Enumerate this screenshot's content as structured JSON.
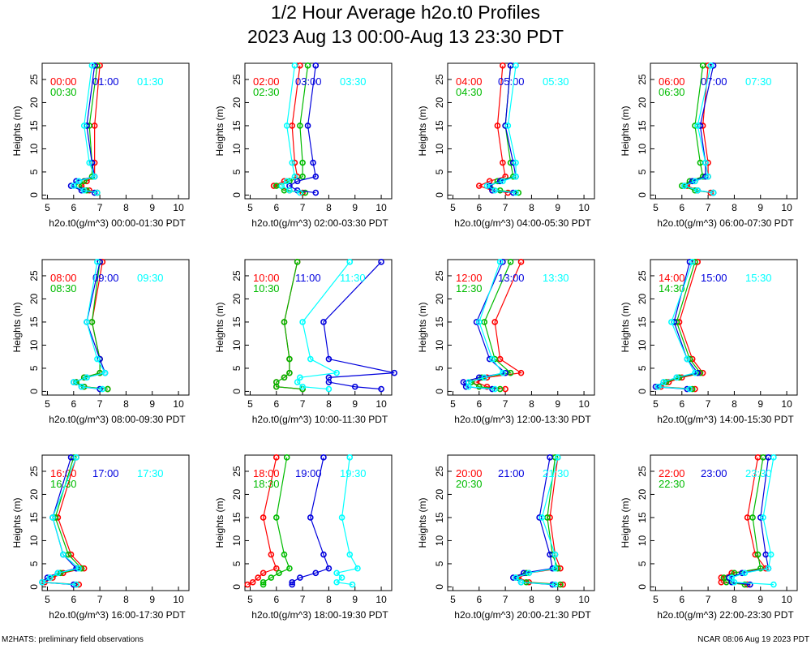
{
  "title": "1/2 Hour Average h2o.t0 Profiles",
  "subtitle": "2023 Aug 13 00:00-Aug 13 23:30 PDT",
  "footer_left": "M2HATS: preliminary field observations",
  "footer_right": "NCAR 08:06 Aug 19 2023 PDT",
  "series_colors": [
    "#ff0000",
    "#00bb00",
    "#0000dd",
    "#00ffff"
  ],
  "chart_data": [
    {
      "type": "line",
      "xlabel": "h2o.t0(g/m^3) 00:00-01:30 PDT",
      "ylabel": "Heights (m)",
      "xlim": [
        4.8,
        10.4
      ],
      "ylim": [
        -0.8,
        28.5
      ],
      "x_ticks": [
        5,
        6,
        7,
        8,
        9,
        10
      ],
      "y_ticks": [
        0,
        5,
        10,
        15,
        20,
        25
      ],
      "y": [
        0.5,
        1,
        2,
        3,
        4,
        7,
        15,
        28
      ],
      "series": [
        {
          "name": "00:00",
          "values": [
            6.9,
            6.6,
            6.3,
            6.5,
            6.8,
            6.8,
            6.8,
            7.0
          ]
        },
        {
          "name": "00:30",
          "values": [
            6.9,
            6.5,
            6.2,
            6.4,
            6.7,
            6.7,
            6.6,
            6.9
          ]
        },
        {
          "name": "01:00",
          "values": [
            6.8,
            6.3,
            5.9,
            6.1,
            6.8,
            6.7,
            6.5,
            6.8
          ]
        },
        {
          "name": "01:30",
          "values": [
            6.9,
            6.4,
            6.0,
            6.2,
            6.8,
            6.6,
            6.4,
            6.7
          ]
        }
      ]
    },
    {
      "type": "line",
      "xlabel": "h2o.t0(g/m^3) 02:00-03:30 PDT",
      "ylabel": "Heights (m)",
      "xlim": [
        4.8,
        10.4
      ],
      "ylim": [
        -0.8,
        28.5
      ],
      "x_ticks": [
        5,
        6,
        7,
        8,
        9,
        10
      ],
      "y_ticks": [
        0,
        5,
        10,
        15,
        20,
        25
      ],
      "y": [
        0.5,
        1,
        2,
        3,
        4,
        7,
        15,
        28
      ],
      "series": [
        {
          "name": "02:00",
          "values": [
            7.0,
            6.5,
            5.9,
            6.3,
            6.8,
            6.7,
            6.6,
            6.9
          ]
        },
        {
          "name": "02:30",
          "values": [
            7.1,
            6.3,
            6.0,
            6.5,
            7.0,
            7.0,
            6.9,
            7.2
          ]
        },
        {
          "name": "03:00",
          "values": [
            7.5,
            6.8,
            6.5,
            6.8,
            7.5,
            7.4,
            7.2,
            7.5
          ]
        },
        {
          "name": "03:30",
          "values": [
            6.9,
            6.5,
            6.2,
            6.4,
            6.7,
            6.6,
            6.4,
            6.7
          ]
        }
      ]
    },
    {
      "type": "line",
      "xlabel": "h2o.t0(g/m^3) 04:00-05:30 PDT",
      "ylabel": "Heights (m)",
      "xlim": [
        4.8,
        10.4
      ],
      "ylim": [
        -0.8,
        28.5
      ],
      "x_ticks": [
        5,
        6,
        7,
        8,
        9,
        10
      ],
      "y_ticks": [
        0,
        5,
        10,
        15,
        20,
        25
      ],
      "y": [
        0.5,
        1,
        2,
        3,
        4,
        7,
        15,
        28
      ],
      "series": [
        {
          "name": "04:00",
          "values": [
            7.1,
            6.5,
            6.0,
            6.4,
            7.0,
            6.9,
            6.7,
            6.9
          ]
        },
        {
          "name": "04:30",
          "values": [
            7.5,
            6.8,
            6.4,
            6.7,
            7.3,
            7.2,
            7.0,
            7.2
          ]
        },
        {
          "name": "05:00",
          "values": [
            7.3,
            6.5,
            6.4,
            6.8,
            7.4,
            7.3,
            7.0,
            7.2
          ]
        },
        {
          "name": "05:30",
          "values": [
            7.4,
            6.6,
            6.3,
            6.9,
            7.4,
            7.4,
            7.1,
            7.4
          ]
        }
      ]
    },
    {
      "type": "line",
      "xlabel": "h2o.t0(g/m^3) 06:00-07:30 PDT",
      "ylabel": "Heights (m)",
      "xlim": [
        4.8,
        10.4
      ],
      "ylim": [
        -0.8,
        28.5
      ],
      "x_ticks": [
        5,
        6,
        7,
        8,
        9,
        10
      ],
      "y_ticks": [
        0,
        5,
        10,
        15,
        20,
        25
      ],
      "y": [
        0.5,
        1,
        2,
        3,
        4,
        7,
        15,
        28
      ],
      "series": [
        {
          "name": "06:00",
          "values": [
            7.1,
            6.6,
            6.2,
            6.5,
            7.0,
            7.0,
            6.8,
            7.0
          ]
        },
        {
          "name": "06:30",
          "values": [
            7.2,
            6.5,
            6.0,
            6.3,
            6.8,
            6.7,
            6.5,
            6.8
          ]
        },
        {
          "name": "07:00",
          "values": [
            7.2,
            6.6,
            6.1,
            6.4,
            6.9,
            6.9,
            6.7,
            7.2
          ]
        },
        {
          "name": "07:30",
          "values": [
            7.2,
            6.6,
            6.1,
            6.5,
            7.0,
            6.9,
            6.6,
            7.1
          ]
        }
      ]
    },
    {
      "type": "line",
      "xlabel": "h2o.t0(g/m^3) 08:00-09:30 PDT",
      "ylabel": "Heights (m)",
      "xlim": [
        4.8,
        10.4
      ],
      "ylim": [
        -0.8,
        28.5
      ],
      "x_ticks": [
        5,
        6,
        7,
        8,
        9,
        10
      ],
      "y_ticks": [
        0,
        5,
        10,
        15,
        20,
        25
      ],
      "y": [
        0.5,
        1,
        2,
        3,
        4,
        7,
        15,
        28
      ],
      "series": [
        {
          "name": "08:00",
          "values": [
            7.3,
            6.4,
            6.1,
            6.4,
            7.0,
            7.0,
            6.7,
            7.1
          ]
        },
        {
          "name": "08:30",
          "values": [
            7.3,
            6.4,
            6.1,
            6.4,
            7.0,
            7.0,
            6.7,
            7.0
          ]
        },
        {
          "name": "09:00",
          "values": [
            7.0,
            6.3,
            6.0,
            6.5,
            7.2,
            7.0,
            6.5,
            7.0
          ]
        },
        {
          "name": "09:30",
          "values": [
            7.1,
            6.3,
            6.0,
            6.5,
            7.2,
            6.9,
            6.5,
            6.9
          ]
        }
      ]
    },
    {
      "type": "line",
      "xlabel": "h2o.t0(g/m^3) 10:00-11:30 PDT",
      "ylabel": "Heights (m)",
      "xlim": [
        4.8,
        10.4
      ],
      "ylim": [
        -0.8,
        28.5
      ],
      "x_ticks": [
        5,
        6,
        7,
        8,
        9,
        10
      ],
      "y_ticks": [
        0,
        5,
        10,
        15,
        20,
        25
      ],
      "y": [
        0.5,
        1,
        2,
        3,
        4,
        7,
        15,
        28
      ],
      "series": [
        {
          "name": "10:00",
          "values": [
            7.0,
            6.0,
            6.0,
            6.3,
            6.5,
            6.5,
            6.3,
            6.8
          ]
        },
        {
          "name": "10:30",
          "values": [
            7.0,
            6.0,
            6.0,
            6.3,
            6.5,
            6.5,
            6.3,
            6.8
          ]
        },
        {
          "name": "11:00",
          "values": [
            10.0,
            9.0,
            8.0,
            8.0,
            10.5,
            8.0,
            7.8,
            10.0
          ]
        },
        {
          "name": "11:30",
          "values": [
            8.0,
            7.0,
            6.8,
            6.9,
            8.3,
            7.3,
            7.0,
            8.8
          ]
        }
      ]
    },
    {
      "type": "line",
      "xlabel": "h2o.t0(g/m^3) 12:00-13:30 PDT",
      "ylabel": "Heights (m)",
      "xlim": [
        4.8,
        10.4
      ],
      "ylim": [
        -0.8,
        28.5
      ],
      "x_ticks": [
        5,
        6,
        7,
        8,
        9,
        10
      ],
      "y_ticks": [
        0,
        5,
        10,
        15,
        20,
        25
      ],
      "y": [
        0.5,
        1,
        2,
        3,
        4,
        7,
        15,
        28
      ],
      "series": [
        {
          "name": "12:00",
          "values": [
            7.0,
            6.3,
            5.9,
            6.3,
            7.6,
            6.8,
            6.6,
            7.6
          ]
        },
        {
          "name": "12:30",
          "values": [
            6.8,
            6.0,
            5.7,
            6.1,
            7.2,
            6.6,
            6.2,
            7.2
          ]
        },
        {
          "name": "13:00",
          "values": [
            6.5,
            5.5,
            5.4,
            6.0,
            7.0,
            6.4,
            5.9,
            6.9
          ]
        },
        {
          "name": "13:30",
          "values": [
            6.6,
            5.6,
            5.6,
            6.2,
            6.9,
            6.5,
            6.0,
            6.8
          ]
        }
      ]
    },
    {
      "type": "line",
      "xlabel": "h2o.t0(g/m^3) 14:00-15:30 PDT",
      "ylabel": "Heights (m)",
      "xlim": [
        4.8,
        10.4
      ],
      "ylim": [
        -0.8,
        28.5
      ],
      "x_ticks": [
        5,
        6,
        7,
        8,
        9,
        10
      ],
      "y_ticks": [
        0,
        5,
        10,
        15,
        20,
        25
      ],
      "y": [
        0.5,
        1,
        2,
        3,
        4,
        7,
        15,
        28
      ],
      "series": [
        {
          "name": "14:00",
          "values": [
            6.5,
            5.2,
            5.5,
            6.0,
            6.8,
            6.4,
            5.9,
            6.6
          ]
        },
        {
          "name": "14:30",
          "values": [
            6.4,
            5.1,
            5.4,
            5.9,
            6.7,
            6.3,
            5.8,
            6.5
          ]
        },
        {
          "name": "15:00",
          "values": [
            6.2,
            5.0,
            5.3,
            5.8,
            6.6,
            6.2,
            5.7,
            6.3
          ]
        },
        {
          "name": "15:30",
          "values": [
            6.3,
            5.1,
            5.3,
            5.8,
            6.5,
            6.2,
            5.6,
            6.4
          ]
        }
      ]
    },
    {
      "type": "line",
      "xlabel": "h2o.t0(g/m^3) 16:00-17:30 PDT",
      "ylabel": "Heights (m)",
      "xlim": [
        4.8,
        10.4
      ],
      "ylim": [
        -0.8,
        28.5
      ],
      "x_ticks": [
        5,
        6,
        7,
        8,
        9,
        10
      ],
      "y_ticks": [
        0,
        5,
        10,
        15,
        20,
        25
      ],
      "y": [
        0.5,
        1,
        2,
        3,
        4,
        7,
        15,
        28
      ],
      "series": [
        {
          "name": "16:00",
          "values": [
            6.2,
            4.9,
            5.2,
            5.6,
            6.4,
            5.9,
            5.4,
            6.1
          ]
        },
        {
          "name": "16:30",
          "values": [
            6.1,
            4.8,
            5.1,
            5.5,
            6.3,
            5.8,
            5.3,
            6.0
          ]
        },
        {
          "name": "17:00",
          "values": [
            6.0,
            4.8,
            5.0,
            5.4,
            6.1,
            5.6,
            5.2,
            5.9
          ]
        },
        {
          "name": "17:30",
          "values": [
            6.1,
            4.8,
            5.1,
            5.4,
            6.2,
            5.6,
            5.2,
            6.1
          ]
        }
      ]
    },
    {
      "type": "line",
      "xlabel": "h2o.t0(g/m^3) 18:00-19:30 PDT",
      "ylabel": "Heights (m)",
      "xlim": [
        4.8,
        10.4
      ],
      "ylim": [
        -0.8,
        28.5
      ],
      "x_ticks": [
        5,
        6,
        7,
        8,
        9,
        10
      ],
      "y_ticks": [
        0,
        5,
        10,
        15,
        20,
        25
      ],
      "y": [
        0.5,
        1,
        2,
        3,
        4,
        7,
        15,
        28
      ],
      "series": [
        {
          "name": "18:00",
          "values": [
            4.9,
            5.1,
            5.3,
            5.5,
            6.0,
            5.8,
            5.5,
            6.0
          ]
        },
        {
          "name": "18:30",
          "values": [
            5.5,
            5.5,
            5.8,
            6.1,
            6.5,
            6.3,
            6.0,
            6.4
          ]
        },
        {
          "name": "19:00",
          "values": [
            6.6,
            6.6,
            6.9,
            7.5,
            8.0,
            7.8,
            7.3,
            7.8
          ]
        },
        {
          "name": "19:30",
          "values": [
            8.9,
            8.3,
            8.5,
            8.3,
            9.1,
            8.8,
            8.5,
            8.8
          ]
        }
      ]
    },
    {
      "type": "line",
      "xlabel": "h2o.t0(g/m^3) 20:00-21:30 PDT",
      "ylabel": "Heights (m)",
      "xlim": [
        4.8,
        10.4
      ],
      "ylim": [
        -0.8,
        28.5
      ],
      "x_ticks": [
        5,
        6,
        7,
        8,
        9,
        10
      ],
      "y_ticks": [
        0,
        5,
        10,
        15,
        20,
        25
      ],
      "y": [
        0.5,
        1,
        2,
        3,
        4,
        7,
        15,
        28
      ],
      "series": [
        {
          "name": "20:00",
          "values": [
            9.2,
            7.9,
            7.5,
            7.9,
            9.1,
            8.9,
            8.7,
            9.0
          ]
        },
        {
          "name": "20:30",
          "values": [
            9.1,
            7.8,
            7.4,
            7.8,
            9.0,
            8.8,
            8.6,
            8.9
          ]
        },
        {
          "name": "21:00",
          "values": [
            8.8,
            7.6,
            7.3,
            7.7,
            8.8,
            8.7,
            8.3,
            8.7
          ]
        },
        {
          "name": "21:30",
          "values": [
            8.9,
            7.6,
            7.4,
            7.9,
            8.9,
            8.9,
            8.4,
            9.0
          ]
        }
      ]
    },
    {
      "type": "line",
      "xlabel": "h2o.t0(g/m^3) 22:00-23:30 PDT",
      "ylabel": "Heights (m)",
      "xlim": [
        4.8,
        10.4
      ],
      "ylim": [
        -0.8,
        28.5
      ],
      "x_ticks": [
        5,
        6,
        7,
        8,
        9,
        10
      ],
      "y_ticks": [
        0,
        5,
        10,
        15,
        20,
        25
      ],
      "y": [
        0.5,
        1,
        2,
        3,
        4,
        7,
        15,
        28
      ],
      "series": [
        {
          "name": "22:00",
          "values": [
            8.5,
            7.5,
            7.5,
            7.9,
            9.2,
            8.8,
            8.5,
            8.9
          ]
        },
        {
          "name": "22:30",
          "values": [
            8.4,
            7.7,
            7.6,
            8.0,
            9.0,
            8.9,
            8.7,
            9.1
          ]
        },
        {
          "name": "23:00",
          "values": [
            8.6,
            7.9,
            7.8,
            8.3,
            9.3,
            9.2,
            9.0,
            9.3
          ]
        },
        {
          "name": "23:30",
          "values": [
            9.5,
            8.0,
            7.9,
            8.4,
            9.3,
            9.4,
            9.1,
            9.5
          ]
        }
      ]
    }
  ]
}
